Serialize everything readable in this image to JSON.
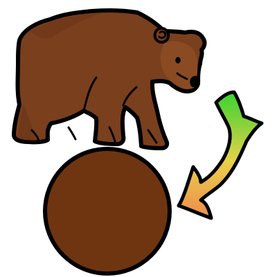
{
  "illustration": {
    "icons": {
      "bear": "bear-icon",
      "ball": "brown-circle-icon",
      "arrow": "curved-arrow-icon"
    },
    "colors": {
      "background": "#ffffff",
      "outline": "#000000",
      "bear_fur": "#7a3f1d",
      "bear_fur_dark": "#5b2c12",
      "bear_face": "#8a4b23",
      "circle_fill": "#6f3510",
      "arrow_gradient": [
        "#38d430",
        "#e7d14b",
        "#f08a4e"
      ]
    }
  }
}
